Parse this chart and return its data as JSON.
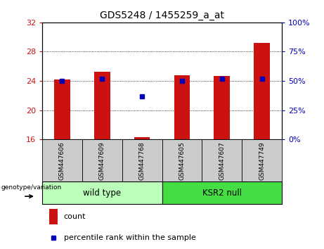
{
  "title": "GDS5248 / 1455259_a_at",
  "samples": [
    "GSM447606",
    "GSM447609",
    "GSM447768",
    "GSM447605",
    "GSM447607",
    "GSM447749"
  ],
  "bar_values": [
    24.2,
    25.3,
    16.3,
    24.8,
    24.7,
    29.2
  ],
  "percentile_values": [
    50,
    52,
    37,
    50,
    52,
    52
  ],
  "ylim_left": [
    16,
    32
  ],
  "ylim_right": [
    0,
    100
  ],
  "yticks_left": [
    16,
    20,
    24,
    28,
    32
  ],
  "yticks_right": [
    0,
    25,
    50,
    75,
    100
  ],
  "bar_color": "#cc1111",
  "dot_color": "#0000bb",
  "groups": [
    {
      "label": "wild type",
      "indices": [
        0,
        1,
        2
      ],
      "color": "#bbffbb"
    },
    {
      "label": "KSR2 null",
      "indices": [
        3,
        4,
        5
      ],
      "color": "#44dd44"
    }
  ],
  "genotype_label": "genotype/variation",
  "legend_count_label": "count",
  "legend_pct_label": "percentile rank within the sample",
  "sample_box_color": "#cccccc",
  "title_fontsize": 10,
  "tick_fontsize": 8,
  "left_tick_color": "#cc1111",
  "right_tick_color": "#0000bb"
}
